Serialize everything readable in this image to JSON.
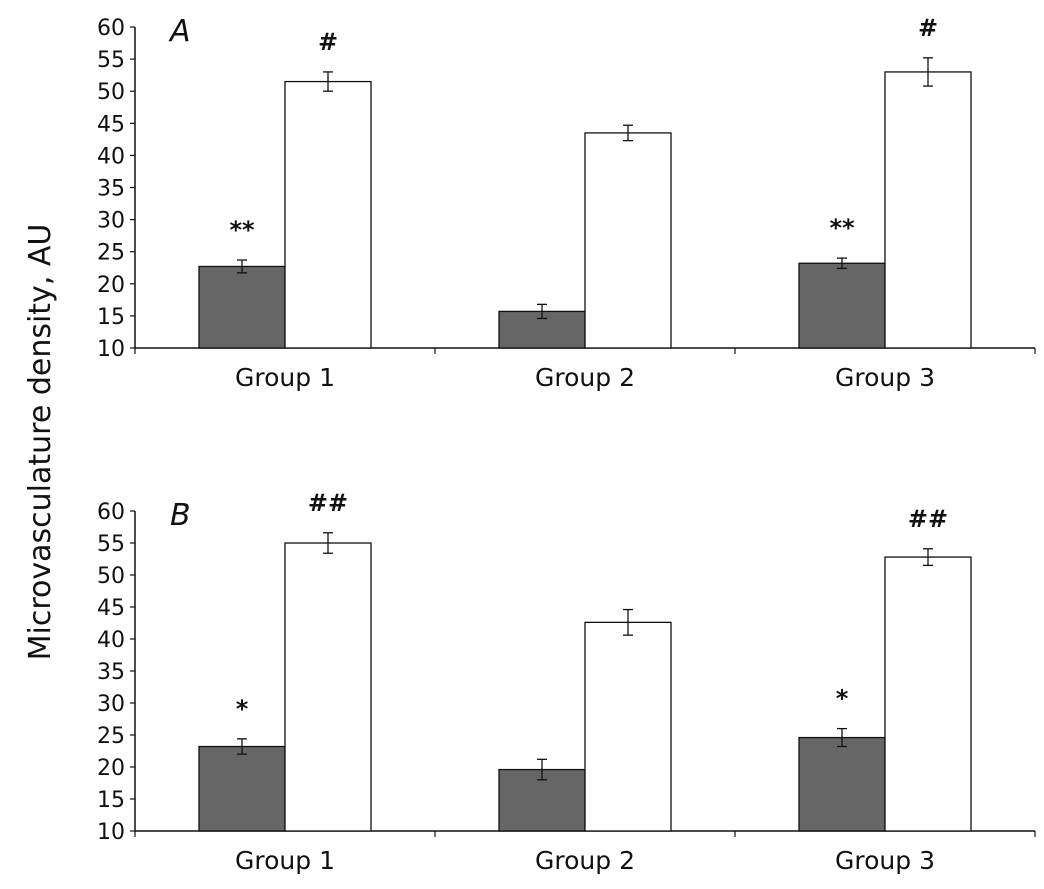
{
  "ylabel": "Microvasculature density, AU",
  "colors": {
    "dark": "#666666",
    "light": "#ffffff",
    "stroke": "#111111"
  },
  "chart_data": [
    {
      "type": "bar",
      "panel": "A",
      "categories": [
        "Group 1",
        "Group 2",
        "Group 3"
      ],
      "ylim": [
        10,
        60
      ],
      "yticks": [
        10,
        15,
        20,
        25,
        30,
        35,
        40,
        45,
        50,
        55,
        60
      ],
      "series": [
        {
          "name": "dark",
          "values": [
            22.7,
            15.7,
            23.2
          ],
          "errors": [
            1.0,
            1.1,
            0.8
          ],
          "annotations": [
            "**",
            "",
            "**"
          ]
        },
        {
          "name": "white",
          "values": [
            51.5,
            43.5,
            53.0
          ],
          "errors": [
            1.5,
            1.2,
            2.2
          ],
          "annotations": [
            "#",
            "",
            "#"
          ]
        }
      ]
    },
    {
      "type": "bar",
      "panel": "B",
      "categories": [
        "Group 1",
        "Group 2",
        "Group 3"
      ],
      "ylim": [
        10,
        60
      ],
      "yticks": [
        10,
        15,
        20,
        25,
        30,
        35,
        40,
        45,
        50,
        55,
        60
      ],
      "series": [
        {
          "name": "dark",
          "values": [
            23.2,
            19.6,
            24.6
          ],
          "errors": [
            1.2,
            1.6,
            1.4
          ],
          "annotations": [
            "*",
            "",
            "*"
          ]
        },
        {
          "name": "white",
          "values": [
            55.0,
            42.6,
            52.8
          ],
          "errors": [
            1.6,
            2.0,
            1.3
          ],
          "annotations": [
            "##",
            "",
            "##"
          ]
        }
      ]
    }
  ]
}
